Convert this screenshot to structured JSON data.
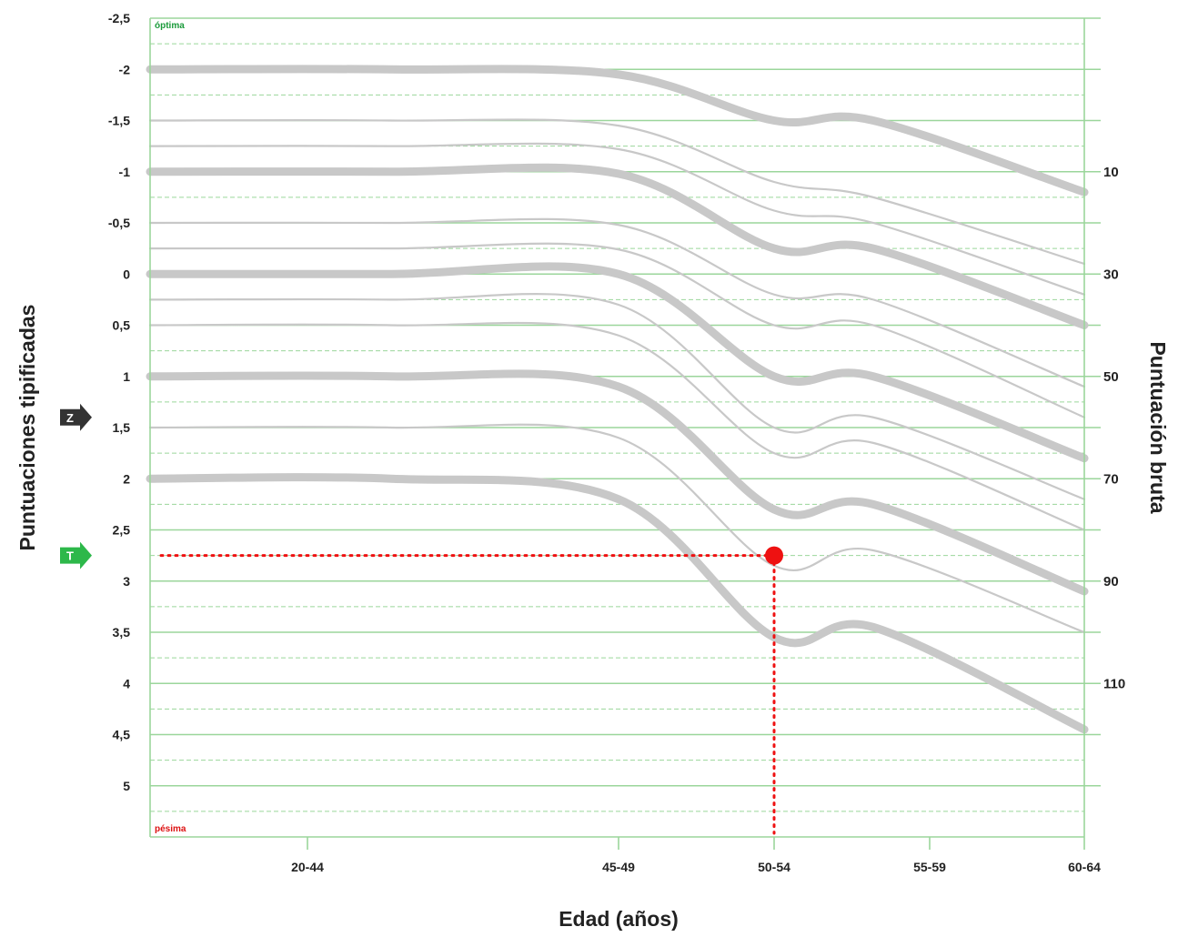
{
  "colors": {
    "grid_solid": "#9bd69b",
    "grid_dashed": "#9bd69b",
    "curve": "#c8c8c8",
    "marker": "#ee1111",
    "best": "#1a9a3a",
    "worst": "#dd1111",
    "z_arrow": "#333333",
    "t_arrow": "#2db84a"
  },
  "icons": {
    "z_arrow": "z-arrow-icon",
    "t_arrow": "t-arrow-icon"
  },
  "chart_data": {
    "type": "line",
    "xlabel": "Edad (años)",
    "ylabel": "Puntuaciones tipificadas",
    "y2label": "Puntuación bruta",
    "categories": [
      "20-44",
      "45-49",
      "50-54",
      "55-59",
      "60-64"
    ],
    "ylim": [
      -2.5,
      5.5
    ],
    "y_inverted": true,
    "yticks": [
      "-2,5",
      "-2",
      "-1,5",
      "-1",
      "-0,5",
      "0",
      "0,5",
      "1",
      "1,5",
      "2",
      "2,5",
      "3",
      "3,5",
      "4",
      "4,5",
      "5"
    ],
    "ytick_values": [
      -2.5,
      -2,
      -1.5,
      -1,
      -0.5,
      0,
      0.5,
      1,
      1.5,
      2,
      2.5,
      3,
      3.5,
      4,
      4.5,
      5
    ],
    "right_ticks": [
      {
        "label": "10",
        "z": -1
      },
      {
        "label": "30",
        "z": 0
      },
      {
        "label": "50",
        "z": 1
      },
      {
        "label": "70",
        "z": 2
      },
      {
        "label": "90",
        "z": 3
      },
      {
        "label": "110",
        "z": 4
      }
    ],
    "best_label": "óptima",
    "worst_label": "pésima",
    "z_marker": {
      "letter": "Z",
      "z": 1.4
    },
    "t_marker": {
      "letter": "T",
      "z": 2.75
    },
    "point": {
      "category": "50-54",
      "z": 2.75
    },
    "series": [
      {
        "values": [
          -2.0,
          -1.95,
          -1.5,
          -1.5,
          -0.8
        ],
        "thick": true
      },
      {
        "values": [
          -1.5,
          -1.45,
          -0.9,
          -0.75,
          -0.1
        ],
        "thick": false
      },
      {
        "values": [
          -1.25,
          -1.22,
          -0.62,
          -0.5,
          0.2
        ],
        "thick": false
      },
      {
        "values": [
          -1.0,
          -0.98,
          -0.25,
          -0.25,
          0.5
        ],
        "thick": true
      },
      {
        "values": [
          -0.5,
          -0.48,
          0.2,
          0.25,
          1.1
        ],
        "thick": false
      },
      {
        "values": [
          -0.25,
          -0.24,
          0.5,
          0.5,
          1.4
        ],
        "thick": false
      },
      {
        "values": [
          0.0,
          0.0,
          1.0,
          1.0,
          1.8
        ],
        "thick": true
      },
      {
        "values": [
          0.25,
          0.3,
          1.5,
          1.4,
          2.2
        ],
        "thick": false
      },
      {
        "values": [
          0.5,
          0.6,
          1.75,
          1.65,
          2.5
        ],
        "thick": false
      },
      {
        "values": [
          1.0,
          1.1,
          2.3,
          2.25,
          3.1
        ],
        "thick": true
      },
      {
        "values": [
          1.5,
          1.6,
          2.85,
          2.7,
          3.5
        ],
        "thick": false
      },
      {
        "values": [
          2.0,
          2.2,
          3.55,
          3.45,
          4.45
        ],
        "thick": true
      }
    ]
  }
}
